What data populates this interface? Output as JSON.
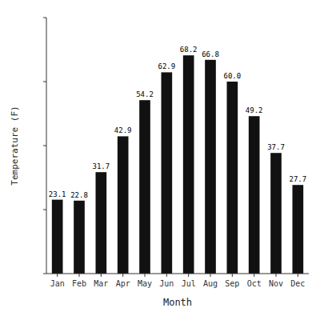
{
  "chart_data": {
    "type": "bar",
    "categories": [
      "Jan",
      "Feb",
      "Mar",
      "Apr",
      "May",
      "Jun",
      "Jul",
      "Aug",
      "Sep",
      "Oct",
      "Nov",
      "Dec"
    ],
    "values": [
      23.1,
      22.8,
      31.7,
      42.9,
      54.2,
      62.9,
      68.2,
      66.8,
      60.0,
      49.2,
      37.7,
      27.7
    ],
    "value_labels": [
      "23.1",
      "22.8",
      "31.7",
      "42.9",
      "54.2",
      "62.9",
      "68.2",
      "66.8",
      "60.0",
      "49.2",
      "37.7",
      "27.7"
    ],
    "color": "#111111",
    "xlabel": "Month",
    "ylabel": "Temperature (F)",
    "ylim": [
      0,
      80
    ],
    "yticks": [
      0,
      20,
      40,
      60,
      80
    ],
    "grid": false,
    "data_labels": true,
    "tick_labels": "x"
  }
}
